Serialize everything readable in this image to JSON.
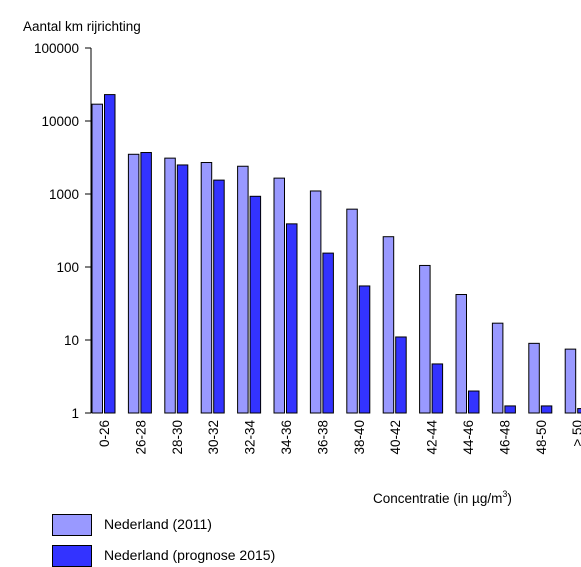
{
  "chart_data": {
    "type": "bar",
    "ylabel": "Aantal km rijrichting",
    "xlabel": "Concentratie (in µg/m³)",
    "yscale": "log",
    "ylim": [
      1,
      100000
    ],
    "yticks": [
      "1",
      "10",
      "100",
      "1000",
      "10000",
      "100000"
    ],
    "categories": [
      "0-26",
      "26-28",
      "28-30",
      "30-32",
      "32-34",
      "34-36",
      "36-38",
      "38-40",
      "40-42",
      "42-44",
      "44-46",
      "46-48",
      "48-50",
      "> 50"
    ],
    "series": [
      {
        "name": "Nederland (2011)",
        "color": "#9999ff",
        "values": [
          17000,
          3500,
          3100,
          2700,
          2400,
          1650,
          1100,
          620,
          260,
          105,
          42,
          17,
          9,
          7.5
        ]
      },
      {
        "name": "Nederland (prognose 2015)",
        "color": "#3333ff",
        "values": [
          23000,
          3700,
          2500,
          1550,
          930,
          390,
          155,
          55,
          11,
          4.7,
          2,
          1.25,
          1.25,
          1.15
        ]
      }
    ],
    "legend_position": "bottom-left",
    "grid": false
  }
}
